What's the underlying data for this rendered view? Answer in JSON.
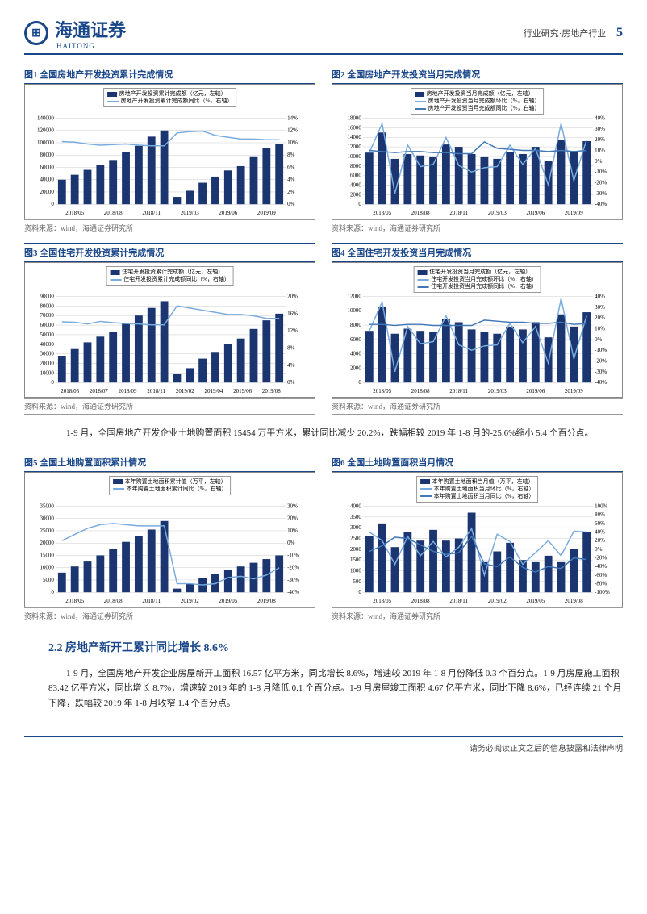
{
  "header": {
    "brand": "海通证券",
    "brand_en": "HAITONG",
    "category": "行业研究·房地产行业",
    "page": "5"
  },
  "charts": [
    {
      "title": "图1  全国房地产开发投资累计完成情况",
      "source": "资料来源：wind，海通证券研究所",
      "legend": [
        "房地产开发投资累计完成额（亿元，左轴）",
        "房地产开发投资累计完成额同比（%，右轴）"
      ],
      "xlabels": [
        "2018/05",
        "2018/08",
        "2018/11",
        "2019/03",
        "2019/06",
        "2019/09"
      ],
      "yleft": {
        "min": 0,
        "max": 140000,
        "step": 20000
      },
      "yright": {
        "min": 0,
        "max": 14,
        "step": 2
      },
      "bars": [
        40000,
        48000,
        56000,
        64000,
        72000,
        85000,
        95000,
        110000,
        120000,
        12000,
        22000,
        35000,
        45000,
        55000,
        62000,
        78000,
        92000,
        98000
      ],
      "line1": [
        10.2,
        10.1,
        9.8,
        9.6,
        9.7,
        9.8,
        9.6,
        9.5,
        9.5,
        11.6,
        11.8,
        11.9,
        11.2,
        10.9,
        10.6,
        10.6,
        10.5,
        10.5
      ]
    },
    {
      "title": "图2  全国房地产开发投资当月完成情况",
      "source": "资料来源：wind，海通证券研究所",
      "legend": [
        "房地产开发投资当月完成额（亿元，左轴）",
        "房地产开发投资当月完成额环比（%，右轴）",
        "房地产开发投资当月完成额同比（%，右轴）"
      ],
      "xlabels": [
        "2018/05",
        "2018/08",
        "2018/11",
        "2019/03",
        "2019/06",
        "2019/09"
      ],
      "yleft": {
        "min": 0,
        "max": 18000,
        "step": 2000
      },
      "yright": {
        "min": -40,
        "max": 40,
        "step": 10
      },
      "bars": [
        10800,
        15000,
        9500,
        10500,
        10200,
        10000,
        12500,
        12000,
        10500,
        10000,
        9500,
        11000,
        10500,
        12000,
        9000,
        13500,
        11000,
        13200
      ],
      "line1": [
        8,
        35,
        -30,
        15,
        -5,
        -3,
        22,
        -4,
        -10,
        -6,
        -5,
        15,
        -3,
        12,
        -22,
        35,
        -18,
        20
      ],
      "line2": [
        10,
        9,
        8,
        9,
        9,
        8,
        8,
        7,
        7,
        18,
        12,
        11,
        10,
        10,
        9,
        10,
        9,
        10
      ]
    },
    {
      "title": "图3  全国住宅开发投资累计完成情况",
      "source": "资料来源：wind，海通证券研究所",
      "legend": [
        "住宅开发投资累计完成额（亿元，左轴）",
        "住宅开发投资累计完成额同比（%，右轴）"
      ],
      "xlabels": [
        "2018/05",
        "2018/07",
        "2018/09",
        "2018/11",
        "2019/02",
        "2019/04",
        "2019/06",
        "2019/08"
      ],
      "yleft": {
        "min": 0,
        "max": 90000,
        "step": 10000
      },
      "yright": {
        "min": 0,
        "max": 20,
        "step": 4
      },
      "bars": [
        28000,
        35000,
        42000,
        48000,
        53000,
        62000,
        70000,
        78000,
        85000,
        9000,
        15000,
        25000,
        32000,
        40000,
        46000,
        56000,
        65000,
        72000
      ],
      "line1": [
        14.1,
        14.0,
        13.6,
        14.2,
        13.9,
        13.7,
        13.6,
        13.4,
        13.4,
        17.8,
        17.3,
        16.8,
        16.3,
        15.8,
        15.8,
        15.5,
        14.9,
        14.9
      ]
    },
    {
      "title": "图4  全国住宅开发投资当月完成情况",
      "source": "资料来源：wind，海通证券研究所",
      "legend": [
        "住宅开发投资当月完成额（亿元，左轴）",
        "住宅开发投资当月完成额环比（%，右轴）",
        "住宅开发投资当月完成额同比（%，右轴）"
      ],
      "xlabels": [
        "2018/05",
        "2018/08",
        "2018/11",
        "2019/03",
        "2019/06",
        "2019/09"
      ],
      "yleft": {
        "min": 0,
        "max": 12000,
        "step": 2000
      },
      "yright": {
        "min": -40,
        "max": 40,
        "step": 10
      },
      "bars": [
        7200,
        10500,
        6800,
        7500,
        7200,
        7000,
        8800,
        8400,
        7400,
        7000,
        6800,
        7800,
        7400,
        8400,
        6300,
        9500,
        7800,
        9800
      ],
      "line1": [
        8,
        35,
        -30,
        12,
        -4,
        -2,
        22,
        -5,
        -10,
        -6,
        -5,
        15,
        -3,
        12,
        -22,
        38,
        -18,
        22
      ],
      "line2": [
        14,
        14,
        13,
        14,
        14,
        13,
        13,
        13,
        13,
        18,
        17,
        16,
        16,
        15,
        15,
        16,
        14,
        15
      ]
    },
    {
      "title": "图5  全国土地购置面积累计情况",
      "source": "资料来源：wind，海通证券研究所",
      "legend": [
        "本年购置土地面积累计值（万平，左轴）",
        "本年购置土地面积累计同比（%，右轴）"
      ],
      "xlabels": [
        "2018/05",
        "2018/08",
        "2018/11",
        "2019/02",
        "2019/05",
        "2019/08"
      ],
      "yleft": {
        "min": 0,
        "max": 35000,
        "step": 5000
      },
      "yright": {
        "min": -40,
        "max": 30,
        "step": 10
      },
      "bars": [
        8000,
        10500,
        12500,
        15000,
        17500,
        20500,
        23000,
        25500,
        29000,
        1500,
        3500,
        5800,
        7500,
        9000,
        10500,
        12000,
        13500,
        15000
      ],
      "line1": [
        2,
        7,
        12,
        15,
        16,
        15,
        14,
        14,
        14,
        -33,
        -33,
        -34,
        -33,
        -28,
        -27,
        -29,
        -26,
        -20
      ]
    },
    {
      "title": "图6  全国土地购置面积当月情况",
      "source": "资料来源：wind，海通证券研究所",
      "legend": [
        "本年购置土地面积当月值（万平，左轴）",
        "本年购置土地面积当月环比（%，右轴）",
        "本年购置土地面积当月同比（%，右轴）"
      ],
      "xlabels": [
        "2018/05",
        "2018/08",
        "2018/11",
        "2019/02",
        "2019/05",
        "2019/08"
      ],
      "yleft": {
        "min": 0,
        "max": 4000,
        "step": 500
      },
      "yright": {
        "min": -100,
        "max": 100,
        "step": 20
      },
      "bars": [
        2600,
        3200,
        2100,
        2800,
        2400,
        2900,
        2400,
        2500,
        3700,
        1400,
        1900,
        2300,
        1500,
        1400,
        1700,
        1400,
        2000,
        2800
      ],
      "line1": [
        40,
        20,
        -35,
        30,
        -15,
        18,
        -18,
        5,
        48,
        -60,
        35,
        18,
        -35,
        -8,
        20,
        -15,
        42,
        40
      ],
      "line2": [
        -5,
        8,
        28,
        25,
        10,
        -5,
        -12,
        -8,
        30,
        -34,
        -40,
        -18,
        -42,
        -53,
        -40,
        -45,
        -20,
        -24
      ]
    }
  ],
  "paragraph1": "1-9 月，全国房地产开发企业土地购置面积 15454 万平方米，累计同比减少 20.2%，跌幅相较 2019 年 1-8 月的-25.6%缩小 5.4 个百分点。",
  "section": "2.2 房地产新开工累计同比增长 8.6%",
  "paragraph2": "1-9 月，全国房地产开发企业房屋新开工面积 16.57 亿平方米，同比增长 8.6%，增速较 2019 年 1-8 月份降低 0.3 个百分点。1-9 月房屋施工面积 83.42 亿平方米，同比增长 8.7%，增速较 2019 年的 1-8 月降低 0.1 个百分点。1-9 月房屋竣工面积 4.67 亿平方米，同比下降 8.6%，已经连续 21 个月下降，跌幅较 2019 年 1-8 月收窄 1.4 个百分点。",
  "footer": "请务必阅读正文之后的信息披露和法律声明",
  "colors": {
    "bar": "#1a3570",
    "line1": "#7aabde",
    "line2": "#4178b8",
    "grid": "#cccccc",
    "brand": "#1a4789"
  }
}
